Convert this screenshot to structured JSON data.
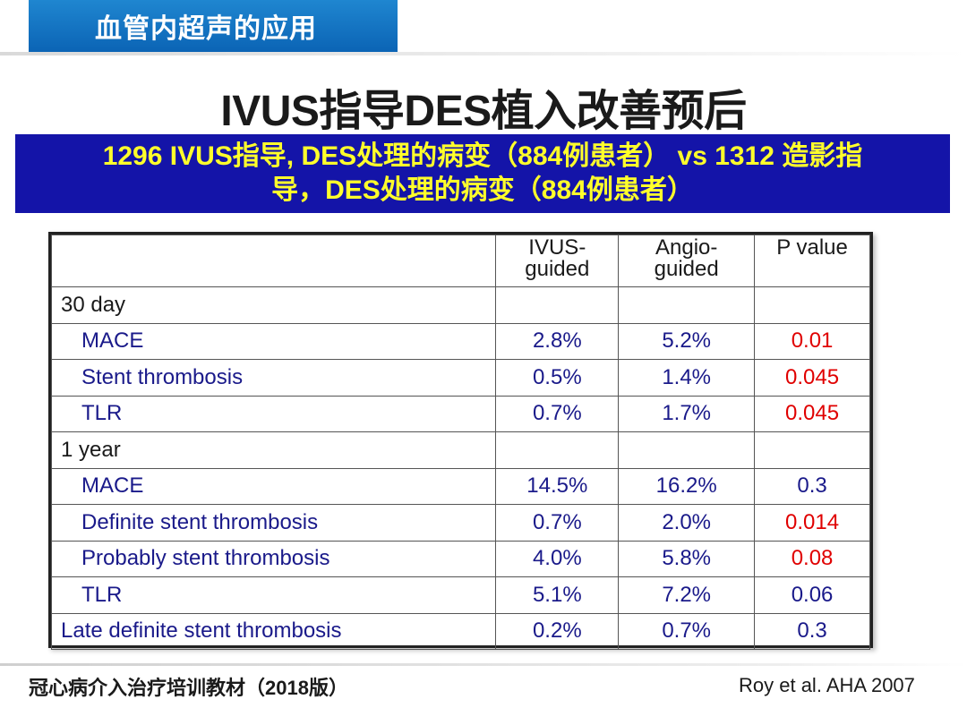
{
  "header": {
    "tab_title": "血管内超声的应用"
  },
  "slide": {
    "title": "IVUS指导DES植入改善预后",
    "banner_line1": "1296 IVUS指导, DES处理的病变（884例患者） vs 1312 造影指",
    "banner_line2": "导，DES处理的病变（884例患者）"
  },
  "table": {
    "columns": [
      "",
      "IVUS-\nguided",
      "Angio-\nguided",
      "P value"
    ],
    "col_ivus_1": "IVUS-",
    "col_ivus_2": "guided",
    "col_angio_1": "Angio-",
    "col_angio_2": "guided",
    "col_p": "P value",
    "rows": [
      {
        "label": "30 day",
        "ivus": "",
        "angio": "",
        "p": ""
      },
      {
        "label": "MACE",
        "ivus": "2.8%",
        "angio": "5.2%",
        "p": "0.01"
      },
      {
        "label": "Stent thrombosis",
        "ivus": "0.5%",
        "angio": "1.4%",
        "p": "0.045"
      },
      {
        "label": "TLR",
        "ivus": "0.7%",
        "angio": "1.7%",
        "p": "0.045"
      },
      {
        "label": "1 year",
        "ivus": "",
        "angio": "",
        "p": ""
      },
      {
        "label": "MACE",
        "ivus": "14.5%",
        "angio": "16.2%",
        "p": "0.3"
      },
      {
        "label": "Definite stent thrombosis",
        "ivus": "0.7%",
        "angio": "2.0%",
        "p": "0.014"
      },
      {
        "label": "Probably stent thrombosis",
        "ivus": "4.0%",
        "angio": "5.8%",
        "p": "0.08"
      },
      {
        "label": "TLR",
        "ivus": "5.1%",
        "angio": "7.2%",
        "p": "0.06"
      },
      {
        "label": "Late definite stent thrombosis",
        "ivus": "0.2%",
        "angio": "0.7%",
        "p": "0.3"
      }
    ]
  },
  "footer": {
    "left": "冠心病介入治疗培训教材（2018版）",
    "right": "Roy et al. AHA 2007"
  },
  "colors": {
    "header_blue": "#0b64b5",
    "banner_bg": "#1414a8",
    "banner_text": "#ffff2b",
    "significant_p": "#e00000",
    "row_text": "#1a1a8a"
  }
}
